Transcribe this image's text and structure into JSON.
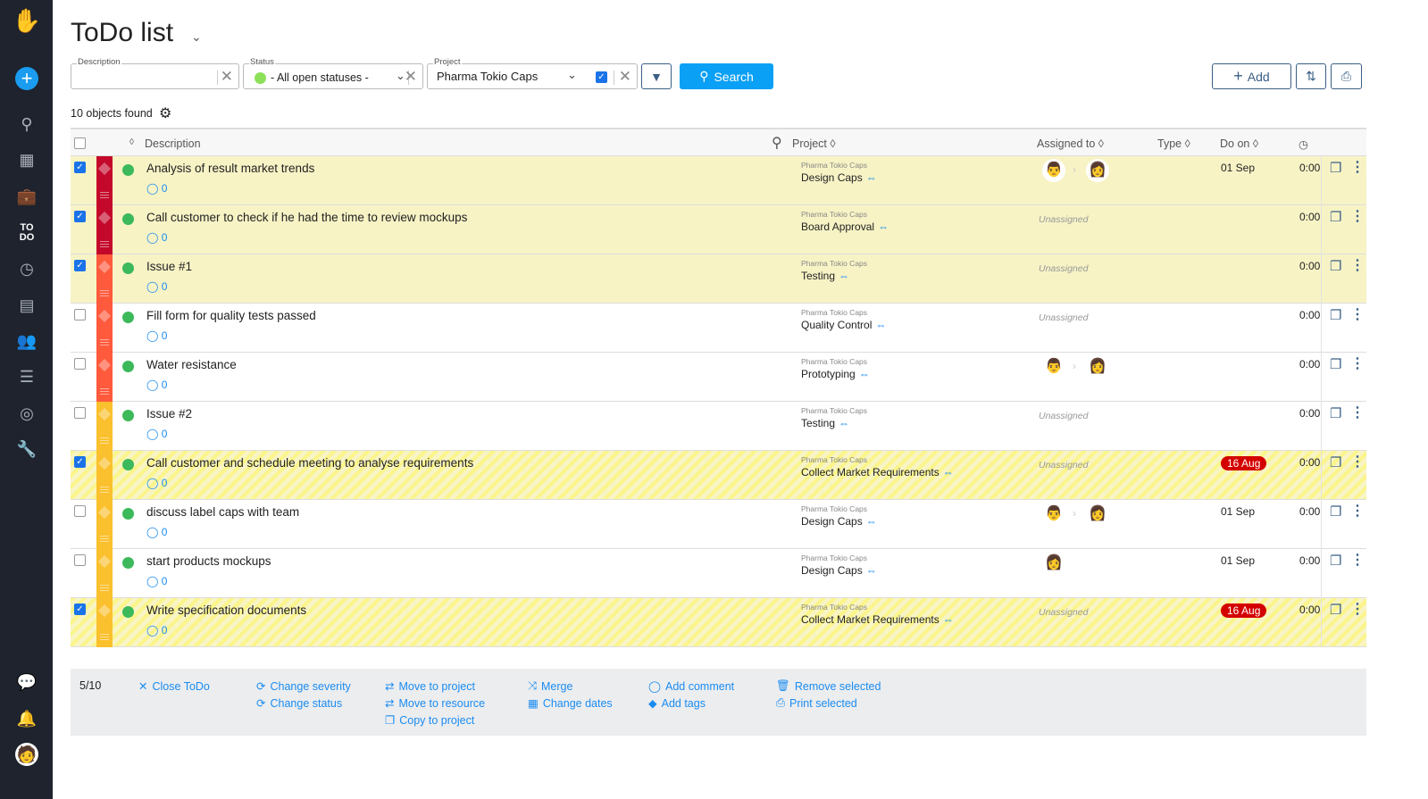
{
  "header": {
    "title": "ToDo list"
  },
  "filters": {
    "description_label": "Description",
    "description_value": "",
    "status_label": "Status",
    "status_value": "- All open statuses -",
    "project_label": "Project",
    "project_value": "Pharma Tokio Caps",
    "search_label": "Search",
    "add_label": "Add"
  },
  "found": "10 objects found",
  "columns": {
    "description": "Description",
    "project": "Project",
    "assigned": "Assigned to",
    "type": "Type",
    "doon": "Do on"
  },
  "colors": {
    "critical": "#c4082b",
    "high": "#ff5a3c",
    "medium": "#fbc02d",
    "accent": "#0aa0f5",
    "overdue": "#d40000"
  },
  "rows": [
    {
      "checked": true,
      "style": "sel",
      "prio": "critical",
      "desc": "Analysis of result market trends",
      "comments": "0",
      "client": "Pharma Tokio Caps",
      "project": "Design Caps",
      "assigned": [
        "man",
        "woman"
      ],
      "doon": "01 Sep",
      "overdue": false,
      "time": "0:00"
    },
    {
      "checked": true,
      "style": "sel",
      "prio": "critical",
      "desc": "Call customer to check if he had the time to review mockups",
      "comments": "0",
      "client": "Pharma Tokio Caps",
      "project": "Board Approval",
      "assigned": [],
      "doon": "",
      "overdue": false,
      "time": "0:00"
    },
    {
      "checked": true,
      "style": "sel",
      "prio": "high",
      "desc": "Issue #1",
      "comments": "0",
      "client": "Pharma Tokio Caps",
      "project": "Testing",
      "assigned": [],
      "doon": "",
      "overdue": false,
      "time": "0:00"
    },
    {
      "checked": false,
      "style": "",
      "prio": "high",
      "desc": "Fill form for quality tests passed",
      "comments": "0",
      "client": "Pharma Tokio Caps",
      "project": "Quality Control",
      "assigned": [],
      "doon": "",
      "overdue": false,
      "time": "0:00"
    },
    {
      "checked": false,
      "style": "",
      "prio": "high",
      "desc": "Water resistance",
      "comments": "0",
      "client": "Pharma Tokio Caps",
      "project": "Prototyping",
      "assigned": [
        "man",
        "woman"
      ],
      "doon": "",
      "overdue": false,
      "time": "0:00"
    },
    {
      "checked": false,
      "style": "",
      "prio": "medium",
      "desc": "Issue #2",
      "comments": "0",
      "client": "Pharma Tokio Caps",
      "project": "Testing",
      "assigned": [],
      "doon": "",
      "overdue": false,
      "time": "0:00"
    },
    {
      "checked": true,
      "style": "hatch",
      "prio": "medium",
      "desc": "Call customer and schedule meeting to analyse requirements",
      "comments": "0",
      "client": "Pharma Tokio Caps",
      "project": "Collect Market Requirements",
      "assigned": [],
      "doon": "16 Aug",
      "overdue": true,
      "time": "0:00"
    },
    {
      "checked": false,
      "style": "",
      "prio": "medium",
      "desc": "discuss label caps with team",
      "comments": "0",
      "client": "Pharma Tokio Caps",
      "project": "Design Caps",
      "assigned": [
        "man",
        "woman"
      ],
      "doon": "01 Sep",
      "overdue": false,
      "time": "0:00"
    },
    {
      "checked": false,
      "style": "",
      "prio": "medium",
      "desc": "start products mockups",
      "comments": "0",
      "client": "Pharma Tokio Caps",
      "project": "Design Caps",
      "assigned": [
        "woman"
      ],
      "doon": "01 Sep",
      "overdue": false,
      "time": "0:00"
    },
    {
      "checked": true,
      "style": "hatch",
      "prio": "medium",
      "desc": "Write specification documents",
      "comments": "0",
      "client": "Pharma Tokio Caps",
      "project": "Collect Market Requirements",
      "assigned": [],
      "doon": "16 Aug",
      "overdue": true,
      "time": "0:00"
    }
  ],
  "unassigned": "Unassigned",
  "bulk": {
    "count": "5/10",
    "actions": [
      {
        "label": "Close ToDo",
        "icon": "✕"
      },
      {
        "label": "Change severity",
        "icon": "⟳"
      },
      {
        "label": "Change status",
        "icon": "⟳"
      },
      {
        "label": "Move to project",
        "icon": "⇄"
      },
      {
        "label": "Move to resource",
        "icon": "⇄"
      },
      {
        "label": "Copy to project",
        "icon": "❐"
      },
      {
        "label": "Merge",
        "icon": "⤨"
      },
      {
        "label": "Change dates",
        "icon": "▦"
      },
      {
        "label": "Add comment",
        "icon": "◯"
      },
      {
        "label": "Add tags",
        "icon": "◆"
      },
      {
        "label": "Remove selected",
        "icon": "🗑"
      },
      {
        "label": "Print selected",
        "icon": "⎙"
      }
    ]
  }
}
